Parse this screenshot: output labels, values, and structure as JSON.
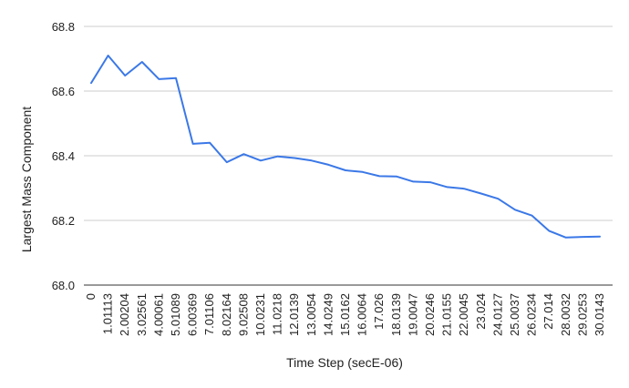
{
  "chart_data": {
    "type": "line",
    "xlabel": "Time Step (secE-06)",
    "ylabel": "Largest Mass Component",
    "ylim": [
      68.0,
      68.8
    ],
    "yticks": [
      "68.0",
      "68.2",
      "68.4",
      "68.6",
      "68.8"
    ],
    "grid": true,
    "legend": "none",
    "categories": [
      "0",
      "1.01113",
      "2.00204",
      "3.02561",
      "4.00061",
      "5.01089",
      "6.00369",
      "7.01106",
      "8.02164",
      "9.02508",
      "10.0231",
      "11.0218",
      "12.0139",
      "13.0054",
      "14.0249",
      "15.0162",
      "16.0064",
      "17.026",
      "18.0139",
      "19.0047",
      "20.0246",
      "21.0155",
      "22.0045",
      "23.024",
      "24.0127",
      "25.0037",
      "26.0234",
      "27.014",
      "28.0032",
      "29.0253",
      "30.0143"
    ],
    "series": [
      {
        "color": "#3b78e7",
        "values": [
          68.625,
          68.71,
          68.648,
          68.69,
          68.637,
          68.64,
          68.437,
          68.44,
          68.38,
          68.405,
          68.385,
          68.398,
          68.393,
          68.385,
          68.372,
          68.355,
          68.35,
          68.337,
          68.336,
          68.32,
          68.318,
          68.303,
          68.298,
          68.283,
          68.267,
          68.233,
          68.215,
          68.168,
          68.147,
          68.149,
          68.15
        ]
      }
    ]
  }
}
